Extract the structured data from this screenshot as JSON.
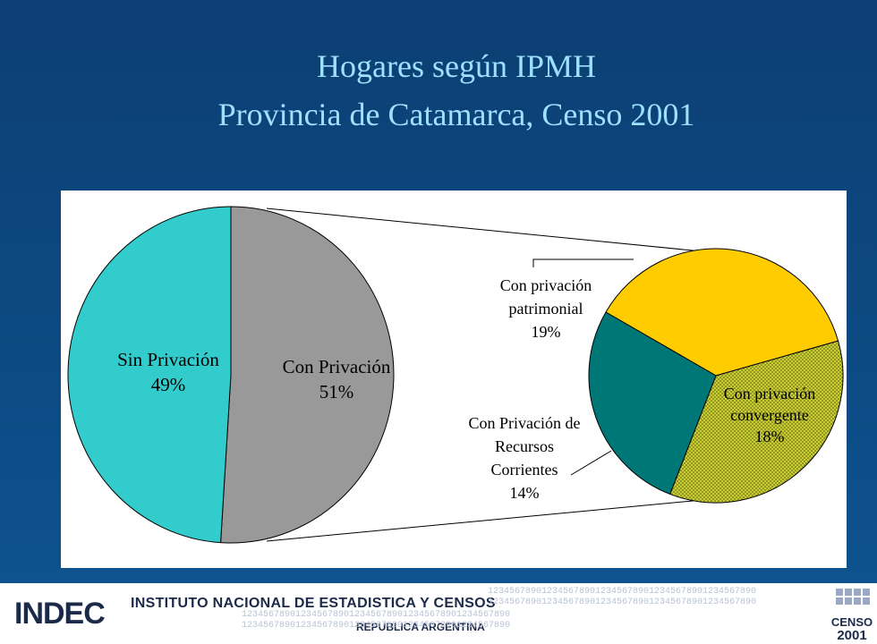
{
  "title": {
    "line1": "Hogares según IPMH",
    "line2": "Provincia de Catamarca, Censo 2001"
  },
  "chart_data": {
    "type": "pie",
    "main_pie": {
      "slices": [
        {
          "label": "Sin Privación",
          "value": 49,
          "value_label": "49%",
          "color": "#33cccc"
        },
        {
          "label": "Con Privación",
          "value": 51,
          "value_label": "51%",
          "color": "#999999"
        }
      ]
    },
    "breakdown_pie": {
      "parent": "Con Privación",
      "slices": [
        {
          "label_lines": [
            "Con privación",
            "patrimonial"
          ],
          "value": 19,
          "value_label": "19%",
          "color": "#ffcc00"
        },
        {
          "label_lines": [
            "Con privación",
            "convergente"
          ],
          "value": 18,
          "value_label": "18%",
          "color": "#cccc33",
          "pattern": "dotted"
        },
        {
          "label_lines": [
            "Con Privación de",
            "Recursos",
            "Corrientes"
          ],
          "value": 14,
          "value_label": "14%",
          "color": "#007777"
        }
      ]
    }
  },
  "footer": {
    "institute": "INSTITUTO NACIONAL DE ESTADISTICA Y CENSOS",
    "country": "REPUBLICA ARGENTINA",
    "logo_text": "INDEC",
    "badge_line1": "CENSO",
    "badge_line2": "2001",
    "digits": "12345678901234567890123456789012345678901234567890"
  }
}
